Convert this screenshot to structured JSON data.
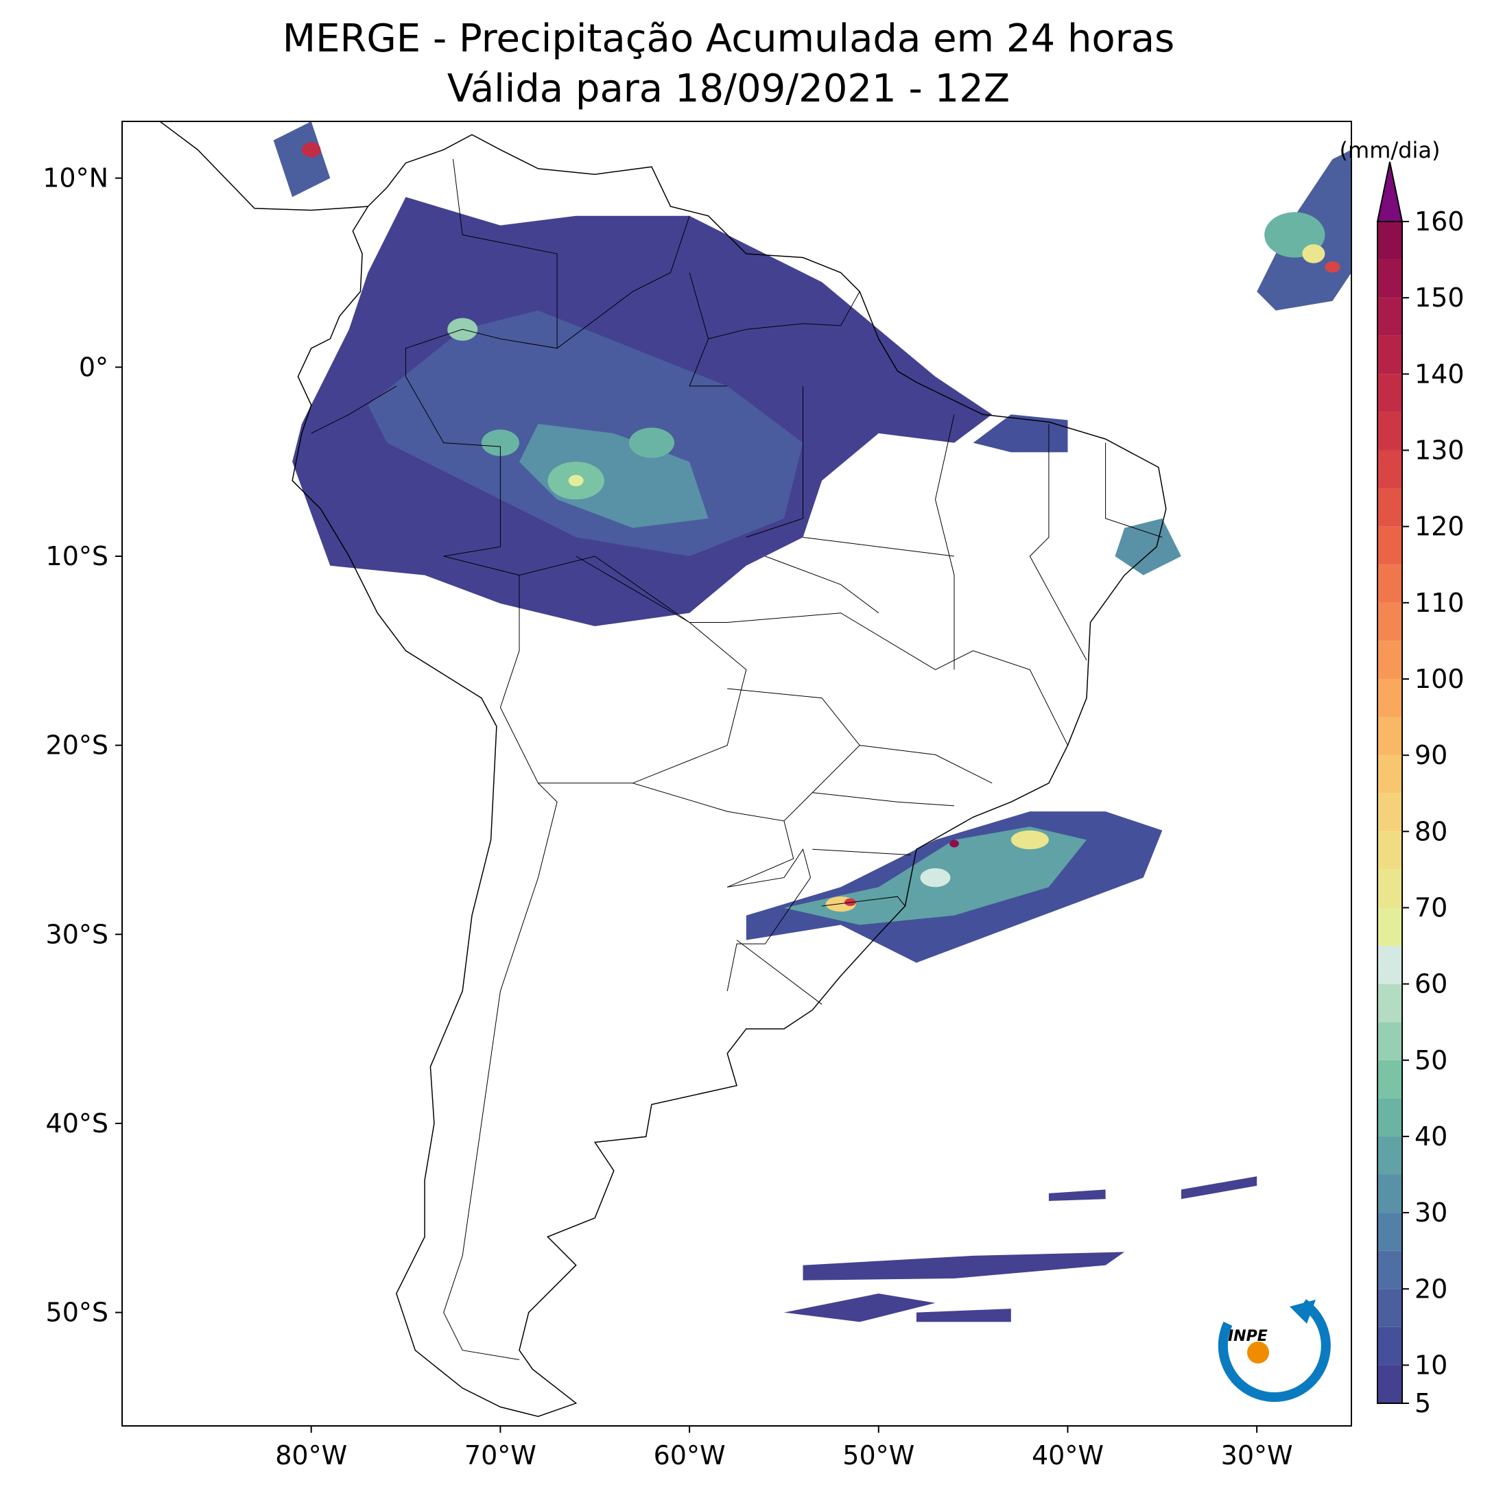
{
  "title": "MERGE - Precipitação Acumulada em 24 horas",
  "subtitle": "Válida para 18/09/2021 - 12Z",
  "map": {
    "xlim": [
      -90,
      -25
    ],
    "ylim": [
      -56,
      13
    ],
    "xticks": [
      {
        "value": -80,
        "label": "80°W"
      },
      {
        "value": -70,
        "label": "70°W"
      },
      {
        "value": -60,
        "label": "60°W"
      },
      {
        "value": -50,
        "label": "50°W"
      },
      {
        "value": -40,
        "label": "40°W"
      },
      {
        "value": -30,
        "label": "30°W"
      }
    ],
    "yticks": [
      {
        "value": 10,
        "label": "10°N"
      },
      {
        "value": 0,
        "label": "0°"
      },
      {
        "value": -10,
        "label": "10°S"
      },
      {
        "value": -20,
        "label": "20°S"
      },
      {
        "value": -30,
        "label": "30°S"
      },
      {
        "value": -40,
        "label": "40°S"
      },
      {
        "value": -50,
        "label": "50°S"
      }
    ]
  },
  "colorbar": {
    "label": "(mm/dia)",
    "levels": [
      5,
      10,
      15,
      20,
      25,
      30,
      35,
      40,
      45,
      50,
      55,
      60,
      65,
      70,
      75,
      80,
      85,
      90,
      95,
      100,
      105,
      110,
      115,
      120,
      125,
      130,
      135,
      140,
      145,
      150,
      155,
      160
    ],
    "colors": [
      "#444191",
      "#45509a",
      "#4b5f9f",
      "#4f6ea4",
      "#5280a7",
      "#5991a6",
      "#60a2a5",
      "#6ab4a3",
      "#7ac3a4",
      "#96cfb1",
      "#b3dcc3",
      "#d3e9e1",
      "#e4ed9a",
      "#ebe58d",
      "#f0dc82",
      "#f5d27a",
      "#f8c66f",
      "#f9b866",
      "#f9a85e",
      "#f79857",
      "#f48751",
      "#f0764b",
      "#ea6547",
      "#e25545",
      "#d84544",
      "#cd3744",
      "#c22c45",
      "#b52347",
      "#a81b4a",
      "#9b144b",
      "#8e0e4c"
    ],
    "extend_color": "#7b0a7b",
    "ticks": [
      5,
      10,
      20,
      30,
      40,
      50,
      60,
      70,
      80,
      90,
      100,
      110,
      120,
      130,
      140,
      150,
      160
    ]
  },
  "logo": "INPE"
}
